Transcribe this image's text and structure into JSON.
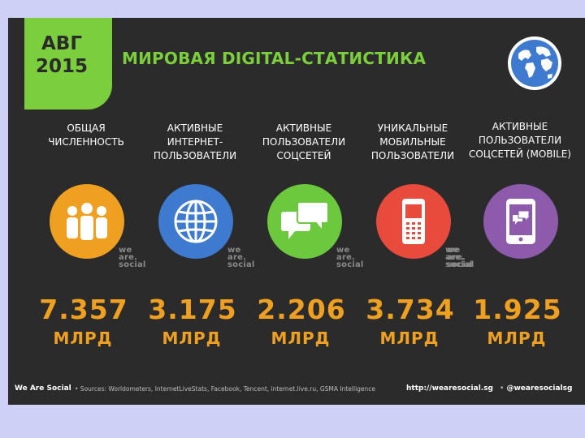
{
  "badge": {
    "month": "АВГ",
    "year": "2015"
  },
  "title": "МИРОВАЯ DIGITAL-СТАТИСТИКА",
  "globe_icon": "globe-icon",
  "colors": {
    "orange": "#f0a020",
    "blue": "#3d7ad0",
    "green": "#6cc93e",
    "red": "#e84a3c",
    "purple": "#8e5aac",
    "accent": "#7ccf3c",
    "background": "#2b2b2b"
  },
  "watermark": {
    "line1": "we",
    "line2": "are.",
    "line3": "social"
  },
  "stats": [
    {
      "label": [
        "ОБЩАЯ",
        "ЧИСЛЕННОСТЬ"
      ],
      "icon": "people-icon",
      "value": "7.357",
      "unit": "МЛРД"
    },
    {
      "label": [
        "АКТИВНЫЕ",
        "ИНТЕРНЕТ-",
        "ПОЛЬЗОВАТЕЛИ"
      ],
      "icon": "globe-grid-icon",
      "value": "3.175",
      "unit": "МЛРД"
    },
    {
      "label": [
        "АКТИВНЫЕ",
        "ПОЛЬЗОВАТЕЛИ",
        "СОЦСЕТЕЙ"
      ],
      "icon": "chat-bubbles-icon",
      "value": "2.206",
      "unit": "МЛРД"
    },
    {
      "label": [
        "УНИКАЛЬНЫЕ",
        "МОБИЛЬНЫЕ",
        "ПОЛЬЗОВАТЕЛИ"
      ],
      "icon": "mobile-phone-icon",
      "value": "3.734",
      "unit": "МЛРД"
    },
    {
      "label": [
        "АКТИВНЫЕ",
        "ПОЛЬЗОВАТЕЛИ",
        "СОЦСЕТЕЙ (MOBILE)"
      ],
      "icon": "smartphone-chat-icon",
      "value": "1.925",
      "unit": "МЛРД"
    }
  ],
  "footer": {
    "brand": "We Are Social",
    "sources": "•  Sources: Worldometers, InternetLiveStats, Facebook, Tencent, internet.live.ru, GSMA Intelligence",
    "url": "http://wearesocial.sg",
    "separator": "•",
    "handle": "@wearesocialsg"
  }
}
